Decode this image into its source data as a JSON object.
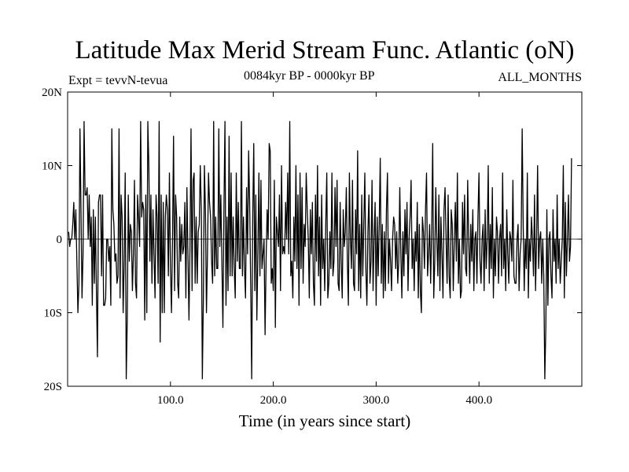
{
  "header": {
    "title": "Latitude Max Merid Stream Func. Atlantic (oN)",
    "expt": "Expt = tevvN-tevua",
    "period": "0084kyr BP - 0000kyr BP",
    "months": "ALL_MONTHS"
  },
  "colors": {
    "line": "#000000",
    "frame": "#000000",
    "background": "#ffffff"
  },
  "chart_data": {
    "type": "line",
    "title": "Latitude Max Merid Stream Func. Atlantic (oN)",
    "xlabel": "Time (in years since start)",
    "ylabel": "",
    "xlim": [
      0,
      500
    ],
    "ylim": [
      -20,
      20
    ],
    "x_ticks": [
      {
        "value": 100,
        "label": "100.0"
      },
      {
        "value": 200,
        "label": "200.0"
      },
      {
        "value": 300,
        "label": "300.0"
      },
      {
        "value": 400,
        "label": "400.0"
      }
    ],
    "y_ticks": [
      {
        "value": 20,
        "label": "20N"
      },
      {
        "value": 10,
        "label": "10N"
      },
      {
        "value": 0,
        "label": "0"
      },
      {
        "value": -10,
        "label": "10S"
      },
      {
        "value": -20,
        "label": "20S"
      }
    ],
    "reference_line": 0,
    "series": [
      {
        "name": "tevvN-tevua",
        "x_start": 1,
        "x_step": 1,
        "values": [
          1,
          -1,
          0,
          0,
          2,
          5,
          0,
          4,
          -3,
          -10,
          -6,
          15,
          4,
          -8,
          -2,
          16,
          6,
          6,
          7,
          0,
          6,
          -1,
          3,
          -9,
          4,
          -6,
          3,
          -7,
          -16,
          5,
          6,
          6,
          -5,
          6,
          -9,
          -9,
          -8,
          0,
          0,
          -3,
          -1,
          -9,
          15,
          4,
          2,
          -3,
          -2,
          -6,
          -5,
          15,
          -8,
          6,
          3,
          -10,
          -3,
          9,
          -19,
          -11,
          6,
          -3,
          2,
          1,
          -7,
          -2,
          8,
          -6,
          -8,
          6,
          3,
          -1,
          16,
          3,
          5,
          4,
          -11,
          6,
          -10,
          16,
          10,
          -3,
          6,
          -6,
          4,
          -2,
          -8,
          6,
          3,
          -6,
          16,
          -14,
          6,
          -10,
          5,
          -10,
          3,
          6,
          4,
          -5,
          9,
          -4,
          -10,
          0,
          14,
          -7,
          6,
          3,
          -6,
          -8,
          3,
          -3,
          2,
          -2,
          -1,
          5,
          -8,
          7,
          -2,
          -11,
          -1,
          15,
          -7,
          8,
          9,
          -6,
          3,
          -6,
          1,
          2,
          10,
          4,
          -19,
          -8,
          10,
          4,
          -10,
          -2,
          9,
          5,
          3,
          -3,
          -6,
          16,
          -5,
          3,
          -4,
          -4,
          15,
          -1,
          6,
          -3,
          -12,
          4,
          16,
          -9,
          3,
          -7,
          14,
          -5,
          9,
          -5,
          3,
          -4,
          -8,
          9,
          -3,
          5,
          -4,
          -4,
          16,
          -5,
          3,
          -4,
          -8,
          7,
          -2,
          12,
          5,
          -6,
          -19,
          3,
          13,
          -7,
          6,
          -11,
          -2,
          9,
          -5,
          8,
          -4,
          -2,
          0,
          -13,
          -3,
          4,
          0,
          13,
          12,
          -6,
          -4,
          -7,
          8,
          -12,
          3,
          1,
          -1,
          6,
          -7,
          10,
          -2,
          -1,
          -2,
          5,
          0,
          9,
          -2,
          16,
          -5,
          -3,
          -8,
          3,
          -3,
          10,
          -4,
          6,
          -9,
          9,
          -4,
          7,
          -6,
          2,
          -1,
          9,
          4,
          0,
          -8,
          4,
          -2,
          5,
          -6,
          -9,
          6,
          -3,
          10,
          -5,
          3,
          -9,
          6,
          -4,
          0,
          -7,
          2,
          9,
          -8,
          -6,
          1,
          -4,
          9,
          -5,
          -3,
          7,
          -1,
          8,
          -6,
          -7,
          5,
          -3,
          -8,
          4,
          -1,
          1,
          7,
          -3,
          -9,
          9,
          0,
          -4,
          8,
          -6,
          -7,
          4,
          -2,
          12,
          -7,
          2,
          -8,
          6,
          -5,
          2,
          9,
          -4,
          -9,
          1,
          6,
          -6,
          -3,
          8,
          -7,
          0,
          5,
          -9,
          3,
          -5,
          2,
          11,
          -6,
          2,
          -8,
          1,
          -7,
          4,
          9,
          -6,
          0,
          -3,
          -7,
          0,
          3,
          2,
          -4,
          1,
          -6,
          -3,
          7,
          -2,
          -8,
          1,
          -5,
          4,
          -2,
          5,
          -7,
          0,
          3,
          8,
          -4,
          0,
          -7,
          1,
          -3,
          5,
          -8,
          2,
          -7,
          -10,
          3,
          1,
          -4,
          4,
          9,
          -5,
          -2,
          2,
          -6,
          1,
          13,
          -8,
          -3,
          7,
          0,
          -5,
          6,
          -7,
          3,
          -2,
          -8,
          4,
          7,
          0,
          -6,
          6,
          -5,
          -8,
          4,
          2,
          -7,
          0,
          5,
          -3,
          9,
          -6,
          0,
          -8,
          -7,
          5,
          -2,
          6,
          -4,
          -5,
          8,
          0,
          -6,
          2,
          -3,
          4,
          -7,
          0,
          1,
          -6,
          3,
          9,
          -3,
          -6,
          0,
          2,
          -7,
          4,
          -4,
          0,
          10,
          -6,
          2,
          -4,
          7,
          -8,
          0,
          -5,
          3,
          1,
          -6,
          0,
          2,
          -5,
          9,
          -4,
          0,
          -7,
          4,
          -2,
          -6,
          1,
          0,
          -3,
          8,
          -5,
          -6,
          -6,
          0,
          2,
          -7,
          -2,
          0,
          15,
          2,
          -7,
          0,
          -4,
          9,
          -8,
          0,
          -3,
          3,
          0,
          -5,
          6,
          -7,
          0,
          10,
          -4,
          0,
          1,
          -6,
          0,
          -5,
          -19,
          -12,
          4,
          -9,
          0,
          1,
          -5,
          -8,
          4,
          -3,
          0,
          -6,
          6,
          -4,
          0,
          -6,
          -3,
          0,
          10,
          -8,
          5,
          -5,
          0,
          6,
          -3,
          -1,
          11
        ]
      }
    ]
  }
}
